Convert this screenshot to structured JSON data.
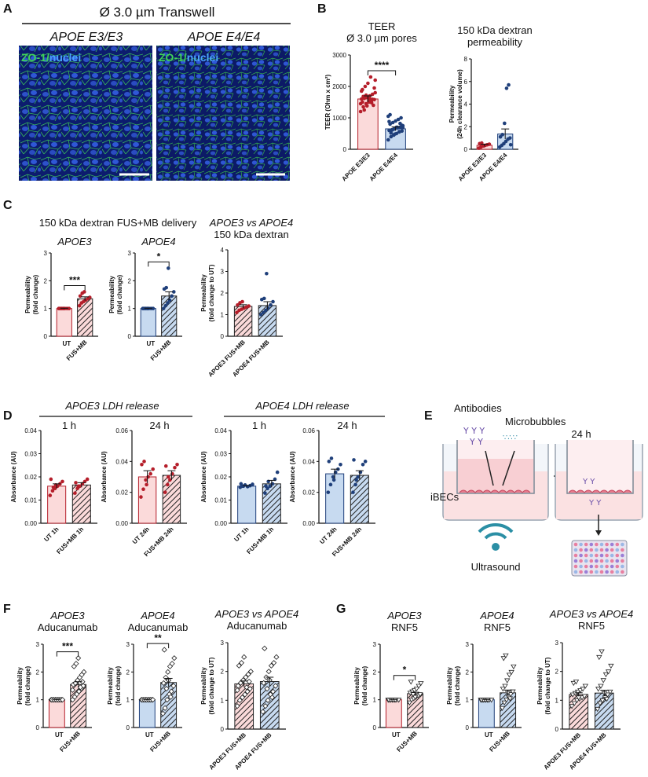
{
  "colors": {
    "e3_fill": "#fbdada",
    "e3_edge": "#b51e2a",
    "e3_dot": "#b51e2a",
    "e4_fill": "#c7daf0",
    "e4_edge": "#1f3f7a",
    "e4_dot": "#1f3f7a"
  },
  "panel_labels": {
    "a": "A",
    "b": "B",
    "c": "C",
    "d": "D",
    "e": "E",
    "f": "F",
    "g": "G"
  },
  "panel_a": {
    "title": "Ø 3.0 µm Transwell",
    "left_label": "APOE  E3/E3",
    "right_label": "APOE  E4/E4",
    "stain_a": "ZO-1",
    "stain_sep": "/",
    "stain_b": "nuclei"
  },
  "panel_c_header": {
    "left": "150 kDa dextran FUS+MB delivery",
    "right_line1": "APOE3 vs APOE4",
    "right_line2": "150 kDa dextran"
  },
  "panel_d_header": {
    "left": "APOE3 LDH release",
    "right": "APOE4 LDH release"
  },
  "panel_e": {
    "antibodies": "Antibodies",
    "microbubbles": "Microbubbles",
    "time": "24 h",
    "cells": "iBECs",
    "ultrasound": "Ultrasound"
  },
  "chart_data": [
    {
      "id": "b1",
      "type": "bar",
      "panel": "B",
      "title": "TEER",
      "subtitle": "Ø 3.0 µm pores",
      "ylabel": "TEER (Ohm x cm²)",
      "ylim": [
        0,
        3000
      ],
      "yticks": [
        "0",
        "1000",
        "2000",
        "3000"
      ],
      "categories": [
        "APOE E3/E3",
        "APOE E4/E4"
      ],
      "values": [
        1600,
        650
      ],
      "errors": [
        100,
        60
      ],
      "significance": "****",
      "points": [
        [
          1200,
          1350,
          1450,
          1500,
          1550,
          1580,
          1600,
          1620,
          1650,
          1700,
          1750,
          1800,
          1900,
          2000,
          2100,
          2300,
          1400,
          1450,
          1680,
          1720,
          1550,
          1480,
          1950,
          1850,
          1250,
          1380,
          1610,
          1590,
          2200,
          1500
        ],
        [
          300,
          400,
          450,
          500,
          550,
          580,
          600,
          620,
          650,
          680,
          700,
          750,
          800,
          850,
          900,
          950,
          1000,
          1050,
          520,
          640,
          700,
          560,
          760,
          880,
          610,
          480,
          700,
          820,
          690,
          1100
        ]
      ]
    },
    {
      "id": "b2",
      "type": "bar",
      "panel": "B",
      "title": "150 kDa dextran",
      "subtitle": "permeability",
      "ylabel": "Permeability (24h clearance volume)",
      "ylim": [
        0,
        8
      ],
      "yticks": [
        "0",
        "2",
        "4",
        "6",
        "8"
      ],
      "categories": [
        "APOE E3/E3",
        "APOE E4/E4"
      ],
      "values": [
        0.35,
        1.35
      ],
      "errors": [
        0.1,
        0.45
      ],
      "points": [
        [
          0.1,
          0.2,
          0.3,
          0.35,
          0.4,
          0.45,
          0.5,
          0.55,
          0.3
        ],
        [
          0.2,
          0.35,
          0.5,
          0.7,
          0.9,
          1.0,
          1.1,
          1.3,
          2.3,
          5.4,
          5.7,
          0.4
        ]
      ]
    },
    {
      "id": "c1",
      "type": "bar",
      "panel": "C",
      "title": "APOE3",
      "ylabel": "Permeability (fold change)",
      "ylim": [
        0,
        3
      ],
      "yticks": [
        "0",
        "1",
        "2",
        "3"
      ],
      "categories": [
        "UT",
        "FUS+MB"
      ],
      "values": [
        1.0,
        1.35
      ],
      "errors": [
        0.01,
        0.07
      ],
      "significance": "***",
      "points": [
        [
          1,
          1,
          1,
          1,
          1,
          1,
          1,
          1,
          1
        ],
        [
          1.1,
          1.2,
          1.25,
          1.3,
          1.35,
          1.4,
          1.45,
          1.55,
          1.6
        ]
      ]
    },
    {
      "id": "c2",
      "type": "bar",
      "panel": "C",
      "title": "APOE4",
      "ylabel": "Permeability (fold change)",
      "ylim": [
        0,
        3
      ],
      "yticks": [
        "0",
        "1",
        "2",
        "3"
      ],
      "categories": [
        "UT",
        "FUS+MB"
      ],
      "values": [
        1.0,
        1.45
      ],
      "errors": [
        0.01,
        0.15
      ],
      "significance": "*",
      "points": [
        [
          1,
          1,
          1,
          1,
          1,
          1,
          1,
          1,
          1
        ],
        [
          1.0,
          1.1,
          1.2,
          1.3,
          1.45,
          1.6,
          1.7,
          1.75,
          2.45
        ]
      ]
    },
    {
      "id": "c3",
      "type": "bar",
      "panel": "C",
      "title": "",
      "ylabel": "Permeability (fold change to UT)",
      "ylim": [
        0,
        4
      ],
      "yticks": [
        "0",
        "1",
        "2",
        "3",
        "4"
      ],
      "categories": [
        "APOE3 FUS+MB",
        "APOE4 FUS+MB"
      ],
      "values": [
        1.38,
        1.42
      ],
      "errors": [
        0.08,
        0.18
      ],
      "points": [
        [
          1.1,
          1.2,
          1.25,
          1.3,
          1.35,
          1.4,
          1.45,
          1.55,
          1.6
        ],
        [
          1.0,
          1.1,
          1.2,
          1.3,
          1.45,
          1.6,
          1.7,
          1.75,
          2.9
        ]
      ]
    },
    {
      "id": "d1",
      "type": "bar",
      "panel": "D",
      "title": "1 h",
      "ylabel": "Absorbance (AU)",
      "ylim": [
        0,
        0.04
      ],
      "yticks": [
        "0.00",
        "0.01",
        "0.02",
        "0.03",
        "0.04"
      ],
      "categories": [
        "UT 1h",
        "FUS+MB 1h"
      ],
      "values": [
        0.016,
        0.0165
      ],
      "errors": [
        0.001,
        0.001
      ],
      "points": [
        [
          0.012,
          0.014,
          0.015,
          0.016,
          0.017,
          0.018,
          0.019,
          0.0155,
          0.0165
        ],
        [
          0.013,
          0.015,
          0.016,
          0.017,
          0.018,
          0.019,
          0.0175,
          0.016
        ]
      ]
    },
    {
      "id": "d2",
      "type": "bar",
      "panel": "D",
      "title": "24 h",
      "ylabel": "Absorbance (AU)",
      "ylim": [
        0,
        0.06
      ],
      "yticks": [
        "0.00",
        "0.02",
        "0.04",
        "0.06"
      ],
      "categories": [
        "UT 24h",
        "FUS+MB 24h"
      ],
      "values": [
        0.03,
        0.031
      ],
      "errors": [
        0.004,
        0.003
      ],
      "points": [
        [
          0.017,
          0.022,
          0.028,
          0.03,
          0.032,
          0.035,
          0.038,
          0.04,
          0.025
        ],
        [
          0.02,
          0.025,
          0.028,
          0.032,
          0.036,
          0.038,
          0.037,
          0.03
        ]
      ]
    },
    {
      "id": "d3",
      "type": "bar",
      "panel": "D",
      "title": "1 h",
      "ylabel": "Absorbance (AU)",
      "ylim": [
        0,
        0.04
      ],
      "yticks": [
        "0.00",
        "0.01",
        "0.02",
        "0.03",
        "0.04"
      ],
      "categories": [
        "UT 1h",
        "FUS+MB 1h"
      ],
      "values": [
        0.016,
        0.017
      ],
      "errors": [
        0.0003,
        0.0015
      ],
      "points": [
        [
          0.0155,
          0.016,
          0.0165,
          0.0158,
          0.0162,
          0.0168,
          0.017,
          0.016
        ],
        [
          0.013,
          0.015,
          0.016,
          0.017,
          0.019,
          0.022,
          0.016,
          0.018
        ]
      ]
    },
    {
      "id": "d4",
      "type": "bar",
      "panel": "D",
      "title": "24 h",
      "ylabel": "Absorbance (AU)",
      "ylim": [
        0,
        0.06
      ],
      "yticks": [
        "0.00",
        "0.02",
        "0.04",
        "0.06"
      ],
      "categories": [
        "UT 24h",
        "FUS+MB 24h"
      ],
      "values": [
        0.032,
        0.031
      ],
      "errors": [
        0.003,
        0.003
      ],
      "points": [
        [
          0.02,
          0.025,
          0.03,
          0.033,
          0.035,
          0.038,
          0.04,
          0.042,
          0.028
        ],
        [
          0.02,
          0.025,
          0.03,
          0.033,
          0.038,
          0.04,
          0.041,
          0.028
        ]
      ]
    },
    {
      "id": "f1",
      "type": "bar",
      "panel": "F",
      "title": "APOE3",
      "subtitle": "Aducanumab",
      "ylabel": "Permeability (fold change)",
      "ylim": [
        0,
        3
      ],
      "yticks": [
        "0",
        "1",
        "2",
        "3"
      ],
      "categories": [
        "UT",
        "FUS+MB"
      ],
      "values": [
        1.0,
        1.55
      ],
      "errors": [
        0.01,
        0.1
      ],
      "significance": "***",
      "points": [
        [
          1,
          1,
          1,
          1,
          1,
          1,
          1,
          1,
          1,
          1,
          1,
          1
        ],
        [
          1.0,
          1.1,
          1.2,
          1.3,
          1.4,
          1.5,
          1.55,
          1.6,
          1.7,
          1.8,
          1.9,
          2.0,
          2.2,
          2.3,
          2.5,
          1.45,
          1.65,
          1.35
        ]
      ]
    },
    {
      "id": "f2",
      "type": "bar",
      "panel": "F",
      "title": "APOE4",
      "subtitle": "Aducanumab",
      "ylabel": "Permeability (fold change)",
      "ylim": [
        0,
        3
      ],
      "yticks": [
        "0",
        "1",
        "2",
        "3"
      ],
      "categories": [
        "UT",
        "FUS+MB"
      ],
      "values": [
        1.0,
        1.62
      ],
      "errors": [
        0.01,
        0.15
      ],
      "significance": "**",
      "points": [
        [
          1,
          1,
          1,
          1,
          1,
          1,
          1,
          1,
          1,
          1,
          1,
          1
        ],
        [
          0.5,
          0.7,
          1.0,
          1.2,
          1.3,
          1.5,
          1.6,
          1.8,
          2.0,
          2.2,
          2.3,
          2.5,
          2.8,
          1.4,
          1.7,
          1.1
        ]
      ]
    },
    {
      "id": "f3",
      "type": "bar",
      "panel": "F",
      "title": "APOE3 vs APOE4",
      "subtitle": "Aducanumab",
      "ylabel": "Permeability (fold change to UT)",
      "ylim": [
        0,
        3
      ],
      "yticks": [
        "0",
        "1",
        "2",
        "3"
      ],
      "categories": [
        "APOE3 FUS+MB",
        "APOE4 FUS+MB"
      ],
      "values": [
        1.57,
        1.65
      ],
      "errors": [
        0.1,
        0.15
      ],
      "points": [
        [
          0.8,
          1.0,
          1.1,
          1.2,
          1.3,
          1.4,
          1.5,
          1.6,
          1.7,
          1.8,
          1.9,
          2.0,
          2.2,
          2.3,
          2.5,
          1.45,
          1.65,
          1.35
        ],
        [
          0.6,
          0.8,
          1.0,
          1.2,
          1.3,
          1.5,
          1.6,
          1.8,
          2.0,
          2.2,
          2.3,
          2.5,
          2.8,
          1.4,
          1.7,
          1.1
        ]
      ]
    },
    {
      "id": "g1",
      "type": "bar",
      "panel": "G",
      "title": "APOE3",
      "subtitle": "RNF5",
      "ylabel": "Permeability (fold change)",
      "ylim": [
        0,
        3
      ],
      "yticks": [
        "0",
        "1",
        "2",
        "3"
      ],
      "categories": [
        "UT",
        "FUS+MB"
      ],
      "values": [
        1.0,
        1.22
      ],
      "errors": [
        0.01,
        0.05
      ],
      "significance": "*",
      "points": [
        [
          1,
          1,
          1,
          1,
          1,
          1,
          1,
          1,
          1,
          1
        ],
        [
          0.9,
          1.0,
          1.05,
          1.1,
          1.15,
          1.2,
          1.25,
          1.3,
          1.35,
          1.4,
          1.5,
          1.6,
          1.65,
          1.2,
          1.1
        ]
      ]
    },
    {
      "id": "g2",
      "type": "bar",
      "panel": "G",
      "title": "APOE4",
      "subtitle": "RNF5",
      "ylabel": "Permeability (fold change)",
      "ylim": [
        0,
        3
      ],
      "yticks": [
        "0",
        "1",
        "2",
        "3"
      ],
      "categories": [
        "UT",
        "FUS+MB"
      ],
      "values": [
        1.0,
        1.25
      ],
      "errors": [
        0.01,
        0.1
      ],
      "points": [
        [
          1,
          1,
          1,
          1,
          1,
          1,
          1,
          1,
          1,
          1
        ],
        [
          0.7,
          0.9,
          1.0,
          1.1,
          1.2,
          1.3,
          1.4,
          1.5,
          1.7,
          1.9,
          2.0,
          2.2,
          2.5,
          2.6,
          1.25,
          1.05
        ]
      ]
    },
    {
      "id": "g3",
      "type": "bar",
      "panel": "G",
      "title": "APOE3 vs APOE4",
      "subtitle": "RNF5",
      "ylabel": "Permeability (fold change to UT)",
      "ylim": [
        0,
        3
      ],
      "yticks": [
        "0",
        "1",
        "2",
        "3"
      ],
      "categories": [
        "APOE3 FUS+MB",
        "APOE4 FUS+MB"
      ],
      "values": [
        1.2,
        1.25
      ],
      "errors": [
        0.06,
        0.1
      ],
      "points": [
        [
          0.8,
          0.9,
          1.0,
          1.05,
          1.1,
          1.15,
          1.2,
          1.25,
          1.3,
          1.35,
          1.4,
          1.5,
          1.6,
          1.65,
          1.1
        ],
        [
          0.7,
          0.9,
          1.0,
          1.1,
          1.2,
          1.3,
          1.4,
          1.5,
          1.7,
          1.9,
          2.0,
          2.2,
          2.5,
          2.7,
          1.25,
          1.05
        ]
      ]
    }
  ]
}
